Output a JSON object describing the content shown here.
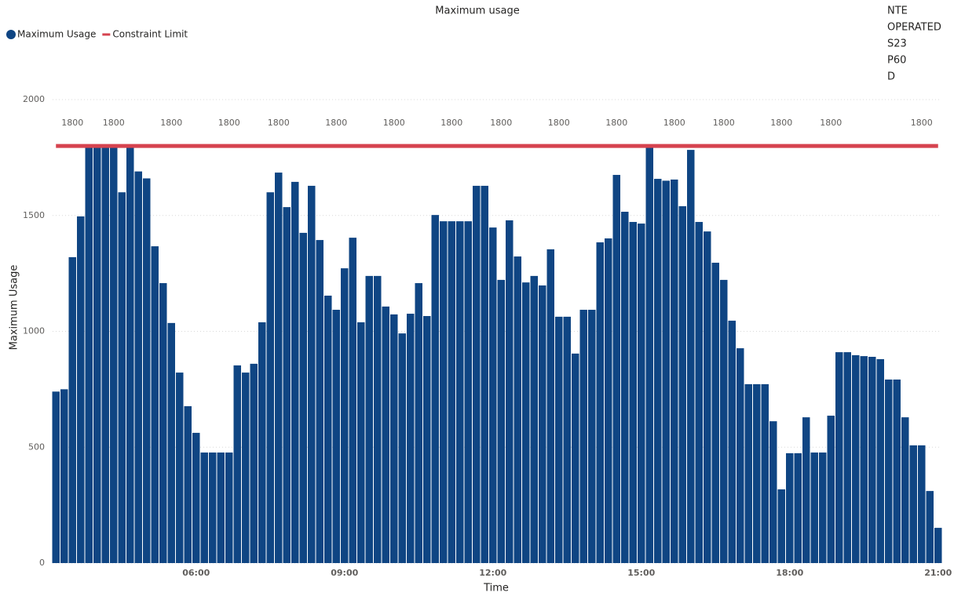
{
  "chart_data": {
    "type": "bar",
    "title": "Maximum usage",
    "x_label": "Time",
    "y_label": "Maximum Usage",
    "annotations": [
      "NTE",
      "OPERATED",
      "S23",
      "P60",
      "D"
    ],
    "legend": "top-left",
    "grid": true,
    "ylim": [
      0,
      2000
    ],
    "yticks": [
      0,
      500,
      1000,
      1500,
      2000
    ],
    "xlim": [
      "03:05",
      "21:05"
    ],
    "xticks": [
      "06:00",
      "09:00",
      "12:00",
      "15:00",
      "18:00",
      "21:00"
    ],
    "x": [
      "03:10",
      "03:20",
      "03:30",
      "03:40",
      "03:50",
      "04:00",
      "04:10",
      "04:20",
      "04:30",
      "04:40",
      "04:50",
      "05:00",
      "05:10",
      "05:20",
      "05:30",
      "05:40",
      "05:50",
      "06:00",
      "06:10",
      "06:20",
      "06:30",
      "06:40",
      "06:50",
      "07:00",
      "07:10",
      "07:20",
      "07:30",
      "07:40",
      "07:50",
      "08:00",
      "08:10",
      "08:20",
      "08:30",
      "08:40",
      "08:50",
      "09:00",
      "09:10",
      "09:20",
      "09:30",
      "09:40",
      "09:50",
      "10:00",
      "10:10",
      "10:20",
      "10:30",
      "10:40",
      "10:50",
      "11:00",
      "11:10",
      "11:20",
      "11:30",
      "11:40",
      "11:50",
      "12:00",
      "12:10",
      "12:20",
      "12:30",
      "12:40",
      "12:50",
      "13:00",
      "13:10",
      "13:20",
      "13:30",
      "13:40",
      "13:50",
      "14:00",
      "14:10",
      "14:20",
      "14:30",
      "14:40",
      "14:50",
      "15:00",
      "15:10",
      "15:20",
      "15:30",
      "15:40",
      "15:50",
      "16:00",
      "16:10",
      "16:20",
      "16:30",
      "16:40",
      "16:50",
      "17:00",
      "17:10",
      "17:20",
      "17:30",
      "17:40",
      "17:50",
      "18:00",
      "18:10",
      "18:20",
      "18:30",
      "18:40",
      "18:50",
      "19:00",
      "19:10",
      "19:20",
      "19:30",
      "19:40",
      "19:50",
      "20:00",
      "20:10",
      "20:20",
      "20:30",
      "20:40",
      "20:50",
      "21:00"
    ],
    "series": [
      {
        "name": "Maximum Usage",
        "type": "bar",
        "color": "#0f4583",
        "values": [
          740,
          750,
          1320,
          1496,
          1800,
          1800,
          1800,
          1800,
          1600,
          1800,
          1690,
          1660,
          1367,
          1208,
          1036,
          822,
          677,
          562,
          477,
          477,
          477,
          477,
          853,
          822,
          860,
          1039,
          1600,
          1685,
          1536,
          1645,
          1425,
          1628,
          1394,
          1154,
          1093,
          1272,
          1404,
          1039,
          1239,
          1239,
          1107,
          1073,
          991,
          1076,
          1208,
          1066,
          1502,
          1475,
          1475,
          1475,
          1475,
          1628,
          1628,
          1448,
          1222,
          1479,
          1323,
          1211,
          1239,
          1198,
          1354,
          1063,
          1063,
          904,
          1093,
          1093,
          1384,
          1401,
          1675,
          1516,
          1472,
          1465,
          1800,
          1658,
          1650,
          1655,
          1540,
          1783,
          1472,
          1431,
          1296,
          1222,
          1046,
          927,
          772,
          772,
          772,
          612,
          318,
          474,
          474,
          629,
          477,
          477,
          636,
          910,
          910,
          897,
          893,
          890,
          880,
          792,
          792,
          629,
          508,
          508,
          311,
          152
        ]
      },
      {
        "name": "Constraint Limit",
        "type": "line",
        "color": "#d6434f",
        "values": [
          1800,
          1800,
          1800,
          1800,
          1800,
          1800,
          1800,
          1800,
          1800,
          1800,
          1800,
          1800,
          1800,
          1800,
          1800,
          1800,
          1800,
          1800,
          1800,
          1800,
          1800,
          1800,
          1800,
          1800,
          1800,
          1800,
          1800,
          1800,
          1800,
          1800,
          1800,
          1800,
          1800,
          1800,
          1800,
          1800,
          1800,
          1800,
          1800,
          1800,
          1800,
          1800,
          1800,
          1800,
          1800,
          1800,
          1800,
          1800,
          1800,
          1800,
          1800,
          1800,
          1800,
          1800,
          1800,
          1800,
          1800,
          1800,
          1800,
          1800,
          1800,
          1800,
          1800,
          1800,
          1800,
          1800,
          1800,
          1800,
          1800,
          1800,
          1800,
          1800,
          1800,
          1800,
          1800,
          1800,
          1800,
          1800,
          1800,
          1800,
          1800,
          1800,
          1800,
          1800,
          1800,
          1800,
          1800,
          1800,
          1800,
          1800,
          1800,
          1800,
          1800,
          1800,
          1800,
          1800,
          1800,
          1800,
          1800,
          1800,
          1800,
          1800,
          1800,
          1800,
          1800,
          1800,
          1800,
          1800
        ],
        "value_labels": [
          null,
          null,
          "1800",
          null,
          null,
          null,
          null,
          "1800",
          null,
          null,
          null,
          null,
          null,
          null,
          "1800",
          null,
          null,
          null,
          null,
          null,
          null,
          "1800",
          null,
          null,
          null,
          null,
          null,
          "1800",
          null,
          null,
          null,
          null,
          null,
          null,
          "1800",
          null,
          null,
          null,
          null,
          null,
          null,
          "1800",
          null,
          null,
          null,
          null,
          null,
          null,
          "1800",
          null,
          null,
          null,
          null,
          null,
          "1800",
          null,
          null,
          null,
          null,
          null,
          null,
          "1800",
          null,
          null,
          null,
          null,
          null,
          null,
          "1800",
          null,
          null,
          null,
          null,
          null,
          null,
          "1800",
          null,
          null,
          null,
          null,
          null,
          "1800",
          null,
          null,
          null,
          null,
          null,
          null,
          "1800",
          null,
          null,
          null,
          null,
          null,
          "1800",
          null,
          null,
          null,
          null,
          null,
          null,
          null,
          null,
          null,
          null,
          "1800",
          null,
          null
        ]
      }
    ]
  }
}
